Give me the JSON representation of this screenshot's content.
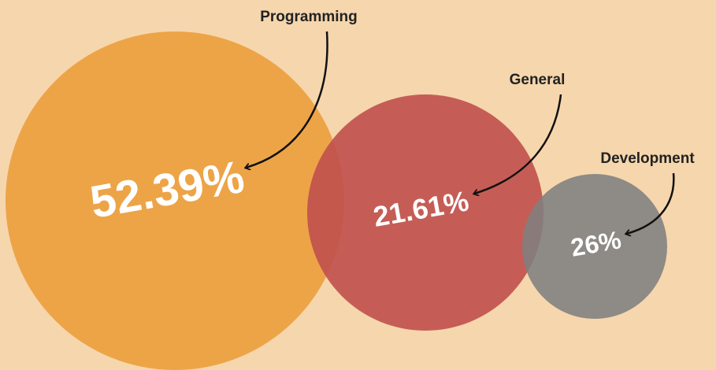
{
  "chart_data": {
    "type": "bubble",
    "categories": [
      "Programming",
      "General",
      "Development"
    ],
    "values": [
      52.39,
      21.61,
      26
    ],
    "value_labels": [
      "52.39%",
      "21.61%",
      "26%"
    ],
    "colors": [
      "#eda447",
      "#c0504d",
      "#7f7f7f"
    ]
  }
}
